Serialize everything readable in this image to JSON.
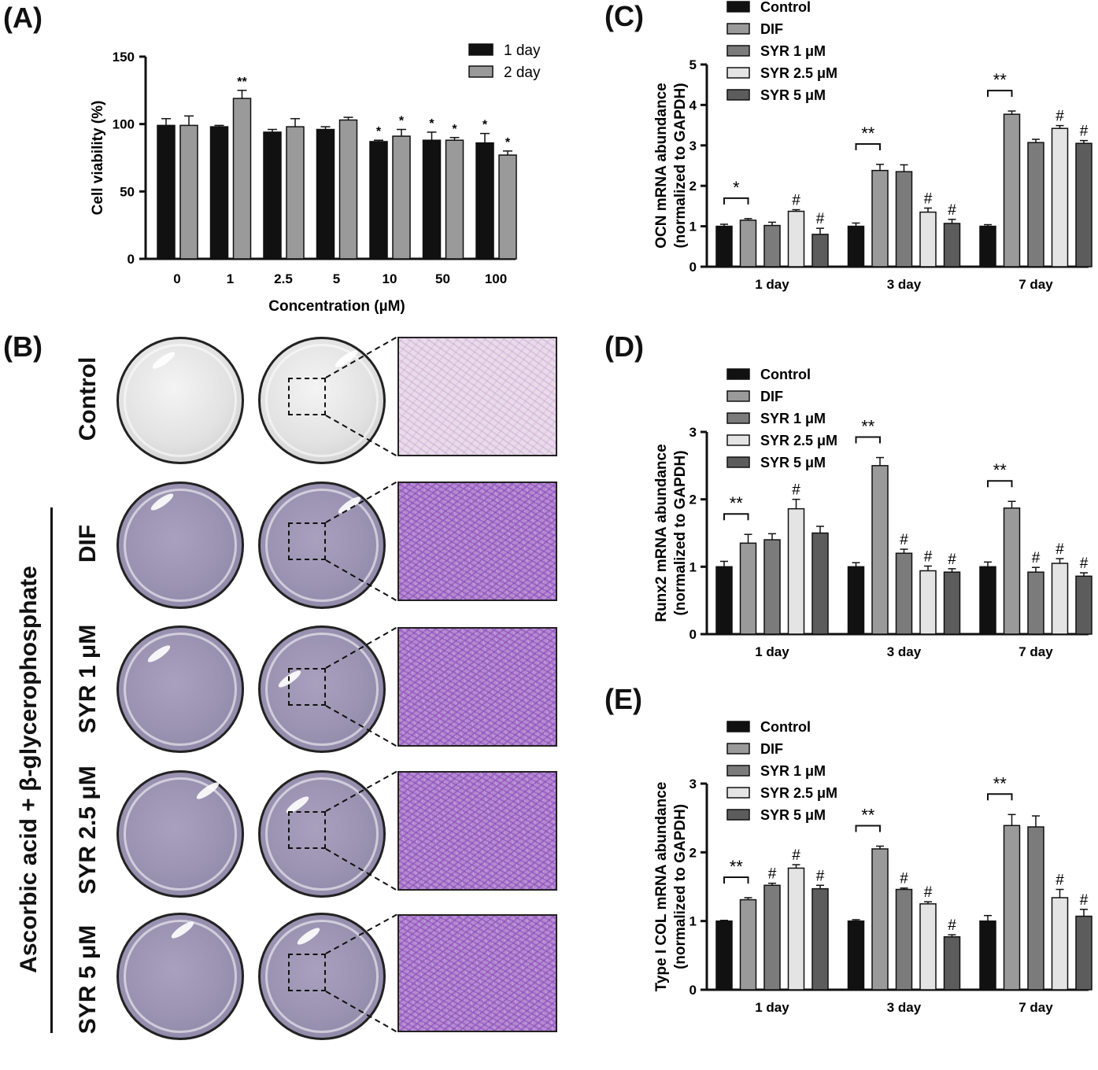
{
  "panels": {
    "A": "(A)",
    "B": "(B)",
    "C": "(C)",
    "D": "(D)",
    "E": "(E)"
  },
  "colors": {
    "black": "#111111",
    "gray": "#9a9a9a",
    "darkgray": "#7a7a7a",
    "light": "#e6e6e6",
    "mid": "#5f5f5f"
  },
  "chart_data": [
    {
      "id": "A",
      "type": "bar",
      "ylabel": "Cell viability (%)",
      "xlabel": "Concentration (µM)",
      "ylim": [
        0,
        150
      ],
      "yticks": [
        0,
        50,
        100,
        150
      ],
      "categories": [
        "0",
        "1",
        "2.5",
        "5",
        "10",
        "50",
        "100"
      ],
      "series": [
        {
          "name": "1 day",
          "color": "#111111",
          "values": [
            99,
            98,
            94,
            96,
            87,
            88,
            86
          ],
          "errors": [
            5,
            1,
            2,
            2,
            1,
            6,
            7
          ],
          "marks": [
            "",
            "",
            "",
            "",
            "*",
            "*",
            "*"
          ]
        },
        {
          "name": "2 day",
          "color": "#9a9a9a",
          "values": [
            99,
            119,
            98,
            103,
            91,
            88,
            77
          ],
          "errors": [
            7,
            6,
            6,
            2,
            5,
            2,
            3
          ],
          "marks": [
            "",
            "**",
            "",
            "",
            "*",
            "*",
            "*"
          ]
        }
      ],
      "legend": "top-right"
    },
    {
      "id": "C",
      "type": "bar",
      "ylabel": "OCN mRNA abundance",
      "ylabel2": "(normalized to GAPDH)",
      "ylim": [
        0,
        5
      ],
      "yticks": [
        0,
        1,
        2,
        3,
        4,
        5
      ],
      "categories": [
        "1 day",
        "3 day",
        "7 day"
      ],
      "series": [
        {
          "name": "Control",
          "values": [
            1.0,
            1.0,
            1.0
          ],
          "errors": [
            0.05,
            0.08,
            0.04
          ],
          "marks": [
            "",
            "",
            ""
          ]
        },
        {
          "name": "DIF",
          "values": [
            1.15,
            2.38,
            3.77
          ],
          "errors": [
            0.04,
            0.15,
            0.08
          ],
          "marks": [
            "",
            "",
            ""
          ]
        },
        {
          "name": "SYR 1 μM",
          "values": [
            1.02,
            2.35,
            3.07
          ],
          "errors": [
            0.08,
            0.17,
            0.08
          ],
          "marks": [
            "",
            "",
            ""
          ]
        },
        {
          "name": "SYR 2.5 μM",
          "values": [
            1.37,
            1.35,
            3.42
          ],
          "errors": [
            0.04,
            0.1,
            0.07
          ],
          "marks": [
            "#",
            "#",
            "#"
          ]
        },
        {
          "name": "SYR 5 μM",
          "values": [
            0.8,
            1.07,
            3.05
          ],
          "errors": [
            0.15,
            0.1,
            0.07
          ],
          "marks": [
            "#",
            "#",
            "#"
          ]
        }
      ],
      "brackets": [
        "*",
        "**",
        "**"
      ],
      "legend": "top-left"
    },
    {
      "id": "D",
      "type": "bar",
      "ylabel": "Runx2 mRNA abundance",
      "ylabel2": "(normalized to GAPDH)",
      "ylim": [
        0,
        3
      ],
      "yticks": [
        0,
        1,
        2,
        3
      ],
      "categories": [
        "1 day",
        "3 day",
        "7 day"
      ],
      "series": [
        {
          "name": "Control",
          "values": [
            1.0,
            1.0,
            1.0
          ],
          "errors": [
            0.08,
            0.06,
            0.07
          ],
          "marks": [
            "",
            "",
            ""
          ]
        },
        {
          "name": "DIF",
          "values": [
            1.35,
            2.5,
            1.87
          ],
          "errors": [
            0.13,
            0.12,
            0.1
          ],
          "marks": [
            "",
            "",
            ""
          ]
        },
        {
          "name": "SYR 1 μM",
          "values": [
            1.4,
            1.2,
            0.92
          ],
          "errors": [
            0.09,
            0.06,
            0.07
          ],
          "marks": [
            "",
            "#",
            "#"
          ]
        },
        {
          "name": "SYR 2.5 μM",
          "values": [
            1.86,
            0.94,
            1.05
          ],
          "errors": [
            0.14,
            0.07,
            0.07
          ],
          "marks": [
            "#",
            "#",
            "#"
          ]
        },
        {
          "name": "SYR 5 μM",
          "values": [
            1.5,
            0.92,
            0.86
          ],
          "errors": [
            0.1,
            0.05,
            0.05
          ],
          "marks": [
            "",
            "#",
            "#"
          ]
        }
      ],
      "brackets": [
        "**",
        "**",
        "**"
      ],
      "legend": "top-left"
    },
    {
      "id": "E",
      "type": "bar",
      "ylabel": "Type I COL mRNA abundance",
      "ylabel2": "(normalized to GAPDH)",
      "ylim": [
        0,
        3
      ],
      "yticks": [
        0,
        1,
        2,
        3
      ],
      "categories": [
        "1 day",
        "3 day",
        "7 day"
      ],
      "series": [
        {
          "name": "Control",
          "values": [
            1.0,
            1.0,
            1.0
          ],
          "errors": [
            0.01,
            0.02,
            0.08
          ],
          "marks": [
            "",
            "",
            ""
          ]
        },
        {
          "name": "DIF",
          "values": [
            1.31,
            2.05,
            2.39
          ],
          "errors": [
            0.03,
            0.04,
            0.16
          ],
          "marks": [
            "",
            "",
            ""
          ]
        },
        {
          "name": "SYR 1 μM",
          "values": [
            1.52,
            1.46,
            2.37
          ],
          "errors": [
            0.03,
            0.02,
            0.16
          ],
          "marks": [
            "#",
            "#",
            ""
          ]
        },
        {
          "name": "SYR 2.5 μM",
          "values": [
            1.77,
            1.25,
            1.34
          ],
          "errors": [
            0.05,
            0.03,
            0.12
          ],
          "marks": [
            "#",
            "#",
            "#"
          ]
        },
        {
          "name": "SYR 5 μM",
          "values": [
            1.47,
            0.77,
            1.07
          ],
          "errors": [
            0.05,
            0.03,
            0.1
          ],
          "marks": [
            "#",
            "#",
            "#"
          ]
        }
      ],
      "brackets": [
        "**",
        "**",
        "**"
      ],
      "legend": "top-left"
    }
  ],
  "panelB": {
    "group_label": "Ascorbic acid + β-glycerophosphate",
    "rows": [
      "Control",
      "DIF",
      "SYR 1 μM",
      "SYR 2.5 μM",
      "SYR 5 μM"
    ]
  }
}
